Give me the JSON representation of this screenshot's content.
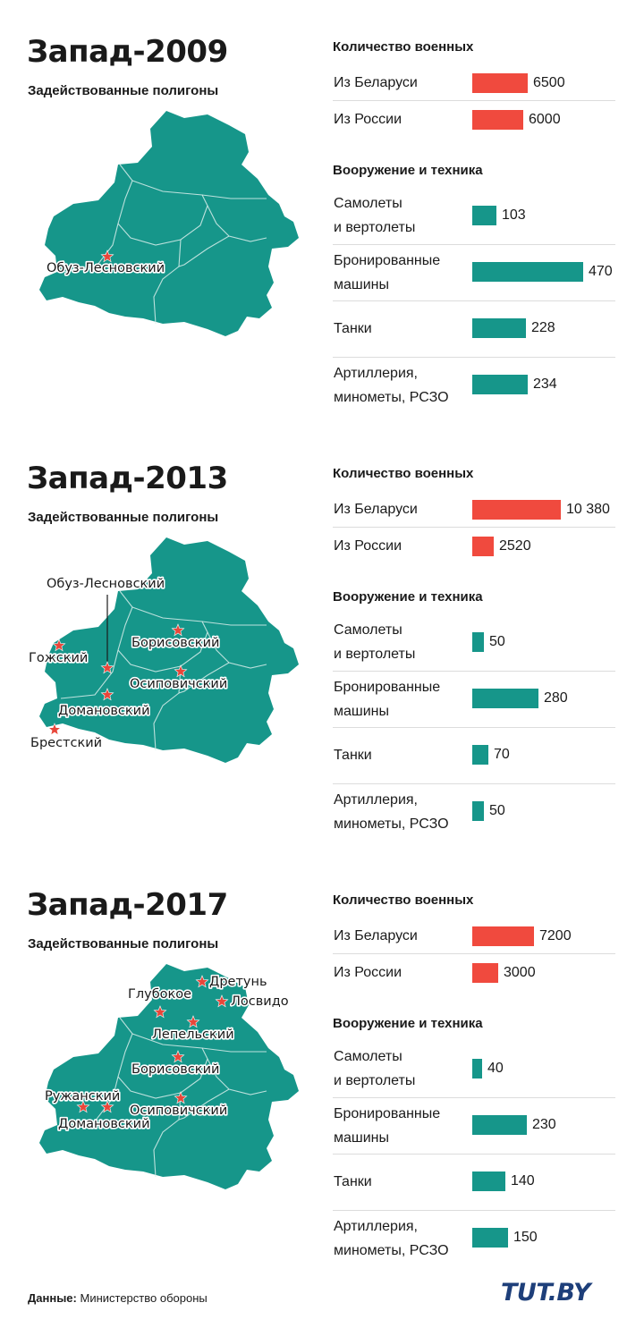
{
  "footer": {
    "source_label": "Данные:",
    "source_text": "Министерство обороны",
    "logo": "TUT.BY"
  },
  "colors": {
    "troops_bar": "#f04a3e",
    "equipment_bar": "#16968a",
    "map_fill": "#16968a",
    "star": "#e8463a"
  },
  "chart_data": [
    {
      "type": "bar",
      "title": "Запад-2009",
      "map_subtitle": "Задействованные полигоны",
      "sites": [
        "Обуз-Лесновский"
      ],
      "groups": [
        {
          "title": "Количество военных",
          "categories": [
            "Из Беларуси",
            "Из России"
          ],
          "values": [
            6500,
            6000
          ],
          "value_labels": [
            "6500",
            "6000"
          ]
        },
        {
          "title": "Вооружение и техника",
          "categories": [
            "Самолеты\nи вертолеты",
            "Бронированные\nмашины",
            "Танки",
            "Артиллерия,\nминометы, РСЗО"
          ],
          "values": [
            103,
            470,
            228,
            234
          ],
          "value_labels": [
            "103",
            "470",
            "228",
            "234"
          ]
        }
      ]
    },
    {
      "type": "bar",
      "title": "Запад-2013",
      "map_subtitle": "Задействованные полигоны",
      "sites": [
        "Обуз-Лесновский",
        "Гожский",
        "Борисовский",
        "Осиповичский",
        "Домановский",
        "Брестский"
      ],
      "groups": [
        {
          "title": "Количество военных",
          "categories": [
            "Из Беларуси",
            "Из России"
          ],
          "values": [
            10380,
            2520
          ],
          "value_labels": [
            "10 380",
            "2520"
          ]
        },
        {
          "title": "Вооружение и техника",
          "categories": [
            "Самолеты\nи вертолеты",
            "Бронированные\nмашины",
            "Танки",
            "Артиллерия,\nминометы, РСЗО"
          ],
          "values": [
            50,
            280,
            70,
            50
          ],
          "value_labels": [
            "50",
            "280",
            "70",
            "50"
          ]
        }
      ]
    },
    {
      "type": "bar",
      "title": "Запад-2017",
      "map_subtitle": "Задействованные полигоны",
      "sites": [
        "Дретунь",
        "Глубокое",
        "Лосвидо",
        "Лепельский",
        "Борисовский",
        "Ружанский",
        "Осиповичский",
        "Домановский"
      ],
      "groups": [
        {
          "title": "Количество военных",
          "categories": [
            "Из Беларуси",
            "Из России"
          ],
          "values": [
            7200,
            3000
          ],
          "value_labels": [
            "7200",
            "3000"
          ]
        },
        {
          "title": "Вооружение и техника",
          "categories": [
            "Самолеты\nи вертолеты",
            "Бронированные\nмашины",
            "Танки",
            "Артиллерия,\nминометы, РСЗО"
          ],
          "values": [
            40,
            230,
            140,
            150
          ],
          "value_labels": [
            "40",
            "230",
            "140",
            "150"
          ]
        }
      ]
    }
  ]
}
